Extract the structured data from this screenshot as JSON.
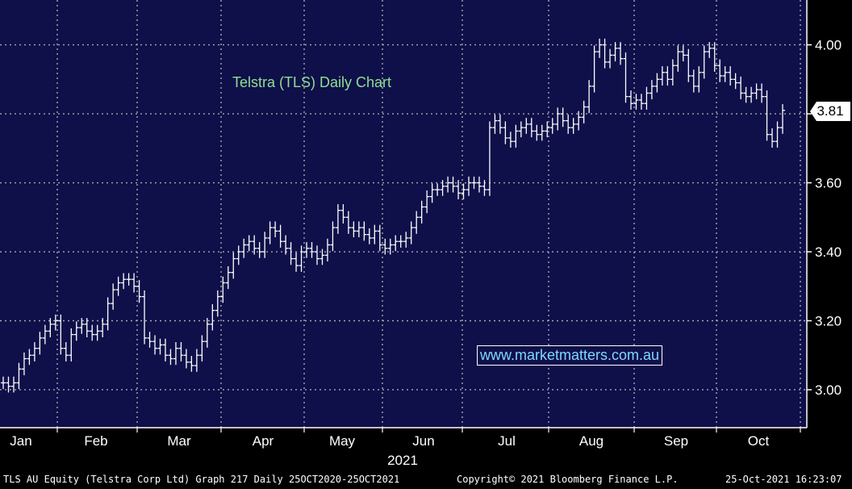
{
  "chart_data": {
    "type": "ohlc",
    "title": "Telstra (TLS) Daily Chart",
    "watermark": "www.marketmatters.com.au",
    "last_price_label": "3.81",
    "y_ticks": [
      "4.00",
      "3.80",
      "3.60",
      "3.40",
      "3.20",
      "3.00"
    ],
    "y_tick_values": [
      4.0,
      3.8,
      3.6,
      3.4,
      3.2,
      3.0
    ],
    "ylim": [
      2.89,
      4.13
    ],
    "x_months": [
      "Jan",
      "Feb",
      "Mar",
      "Apr",
      "May",
      "Jun",
      "Jul",
      "Aug",
      "Sep",
      "Oct"
    ],
    "x_year": "2021",
    "grid": true,
    "series": [
      {
        "points": [
          [
            0,
            3.02
          ],
          [
            2,
            3.01
          ],
          [
            4,
            3.02
          ],
          [
            6,
            3.06
          ],
          [
            8,
            3.09
          ],
          [
            10,
            3.1
          ],
          [
            12,
            3.12
          ],
          [
            14,
            3.15
          ],
          [
            16,
            3.17
          ],
          [
            18,
            3.19
          ],
          [
            20,
            3.2
          ],
          [
            22,
            3.12
          ],
          [
            24,
            3.1
          ],
          [
            26,
            3.16
          ],
          [
            28,
            3.18
          ],
          [
            30,
            3.19
          ],
          [
            32,
            3.17
          ],
          [
            34,
            3.16
          ],
          [
            36,
            3.17
          ],
          [
            38,
            3.19
          ],
          [
            40,
            3.25
          ],
          [
            42,
            3.29
          ],
          [
            44,
            3.31
          ],
          [
            46,
            3.32
          ],
          [
            48,
            3.32
          ],
          [
            50,
            3.3
          ],
          [
            52,
            3.27
          ],
          [
            54,
            3.15
          ],
          [
            56,
            3.14
          ],
          [
            58,
            3.12
          ],
          [
            60,
            3.13
          ],
          [
            62,
            3.1
          ],
          [
            64,
            3.09
          ],
          [
            66,
            3.12
          ],
          [
            68,
            3.1
          ],
          [
            70,
            3.08
          ],
          [
            72,
            3.07
          ],
          [
            74,
            3.1
          ],
          [
            76,
            3.14
          ],
          [
            78,
            3.19
          ],
          [
            80,
            3.23
          ],
          [
            82,
            3.27
          ],
          [
            84,
            3.31
          ],
          [
            86,
            3.34
          ],
          [
            88,
            3.38
          ],
          [
            90,
            3.4
          ],
          [
            92,
            3.42
          ],
          [
            94,
            3.43
          ],
          [
            96,
            3.41
          ],
          [
            98,
            3.4
          ],
          [
            100,
            3.44
          ],
          [
            102,
            3.47
          ],
          [
            104,
            3.46
          ],
          [
            106,
            3.43
          ],
          [
            108,
            3.41
          ],
          [
            110,
            3.38
          ],
          [
            112,
            3.36
          ],
          [
            114,
            3.4
          ],
          [
            116,
            3.41
          ],
          [
            118,
            3.4
          ],
          [
            120,
            3.38
          ],
          [
            122,
            3.39
          ],
          [
            124,
            3.42
          ],
          [
            126,
            3.47
          ],
          [
            128,
            3.52
          ],
          [
            130,
            3.5
          ],
          [
            132,
            3.47
          ],
          [
            134,
            3.46
          ],
          [
            136,
            3.47
          ],
          [
            138,
            3.45
          ],
          [
            140,
            3.44
          ],
          [
            142,
            3.46
          ],
          [
            144,
            3.42
          ],
          [
            146,
            3.41
          ],
          [
            148,
            3.42
          ],
          [
            150,
            3.43
          ],
          [
            152,
            3.43
          ],
          [
            154,
            3.44
          ],
          [
            156,
            3.47
          ],
          [
            158,
            3.5
          ],
          [
            160,
            3.53
          ],
          [
            162,
            3.56
          ],
          [
            164,
            3.58
          ],
          [
            166,
            3.58
          ],
          [
            168,
            3.59
          ],
          [
            170,
            3.6
          ],
          [
            172,
            3.59
          ],
          [
            174,
            3.57
          ],
          [
            176,
            3.58
          ],
          [
            178,
            3.6
          ],
          [
            180,
            3.6
          ],
          [
            182,
            3.59
          ],
          [
            184,
            3.58
          ],
          [
            186,
            3.76
          ],
          [
            188,
            3.78
          ],
          [
            190,
            3.76
          ],
          [
            192,
            3.73
          ],
          [
            194,
            3.72
          ],
          [
            196,
            3.75
          ],
          [
            198,
            3.76
          ],
          [
            200,
            3.77
          ],
          [
            202,
            3.75
          ],
          [
            204,
            3.74
          ],
          [
            206,
            3.75
          ],
          [
            208,
            3.76
          ],
          [
            210,
            3.77
          ],
          [
            212,
            3.8
          ],
          [
            214,
            3.78
          ],
          [
            216,
            3.76
          ],
          [
            218,
            3.77
          ],
          [
            220,
            3.79
          ],
          [
            222,
            3.82
          ],
          [
            224,
            3.88
          ],
          [
            226,
            3.98
          ],
          [
            228,
            4.0
          ],
          [
            230,
            3.95
          ],
          [
            232,
            3.97
          ],
          [
            234,
            3.99
          ],
          [
            236,
            3.96
          ],
          [
            238,
            3.85
          ],
          [
            240,
            3.83
          ],
          [
            242,
            3.84
          ],
          [
            244,
            3.83
          ],
          [
            246,
            3.86
          ],
          [
            248,
            3.88
          ],
          [
            250,
            3.9
          ],
          [
            252,
            3.92
          ],
          [
            254,
            3.9
          ],
          [
            256,
            3.94
          ],
          [
            258,
            3.98
          ],
          [
            260,
            3.97
          ],
          [
            262,
            3.91
          ],
          [
            264,
            3.88
          ],
          [
            266,
            3.92
          ],
          [
            268,
            3.98
          ],
          [
            270,
            3.99
          ],
          [
            272,
            3.94
          ],
          [
            274,
            3.91
          ],
          [
            276,
            3.92
          ],
          [
            278,
            3.9
          ],
          [
            280,
            3.89
          ],
          [
            282,
            3.86
          ],
          [
            284,
            3.85
          ],
          [
            286,
            3.86
          ],
          [
            288,
            3.87
          ],
          [
            290,
            3.85
          ],
          [
            292,
            3.74
          ],
          [
            294,
            3.72
          ],
          [
            296,
            3.76
          ],
          [
            298,
            3.81
          ]
        ]
      }
    ]
  },
  "footer": {
    "left": "TLS AU Equity (Telstra Corp Ltd) Graph 217  Daily 25OCT2020-25OCT2021",
    "center": "Copyright© 2021 Bloomberg Finance L.P.",
    "right": "25-Oct-2021 16:23:07"
  },
  "colors": {
    "background": "#0f0f4a",
    "grid": "#a8a8a8",
    "bars": "#ffffff",
    "title": "#8ee08e",
    "watermark": "#7fd7ff"
  }
}
